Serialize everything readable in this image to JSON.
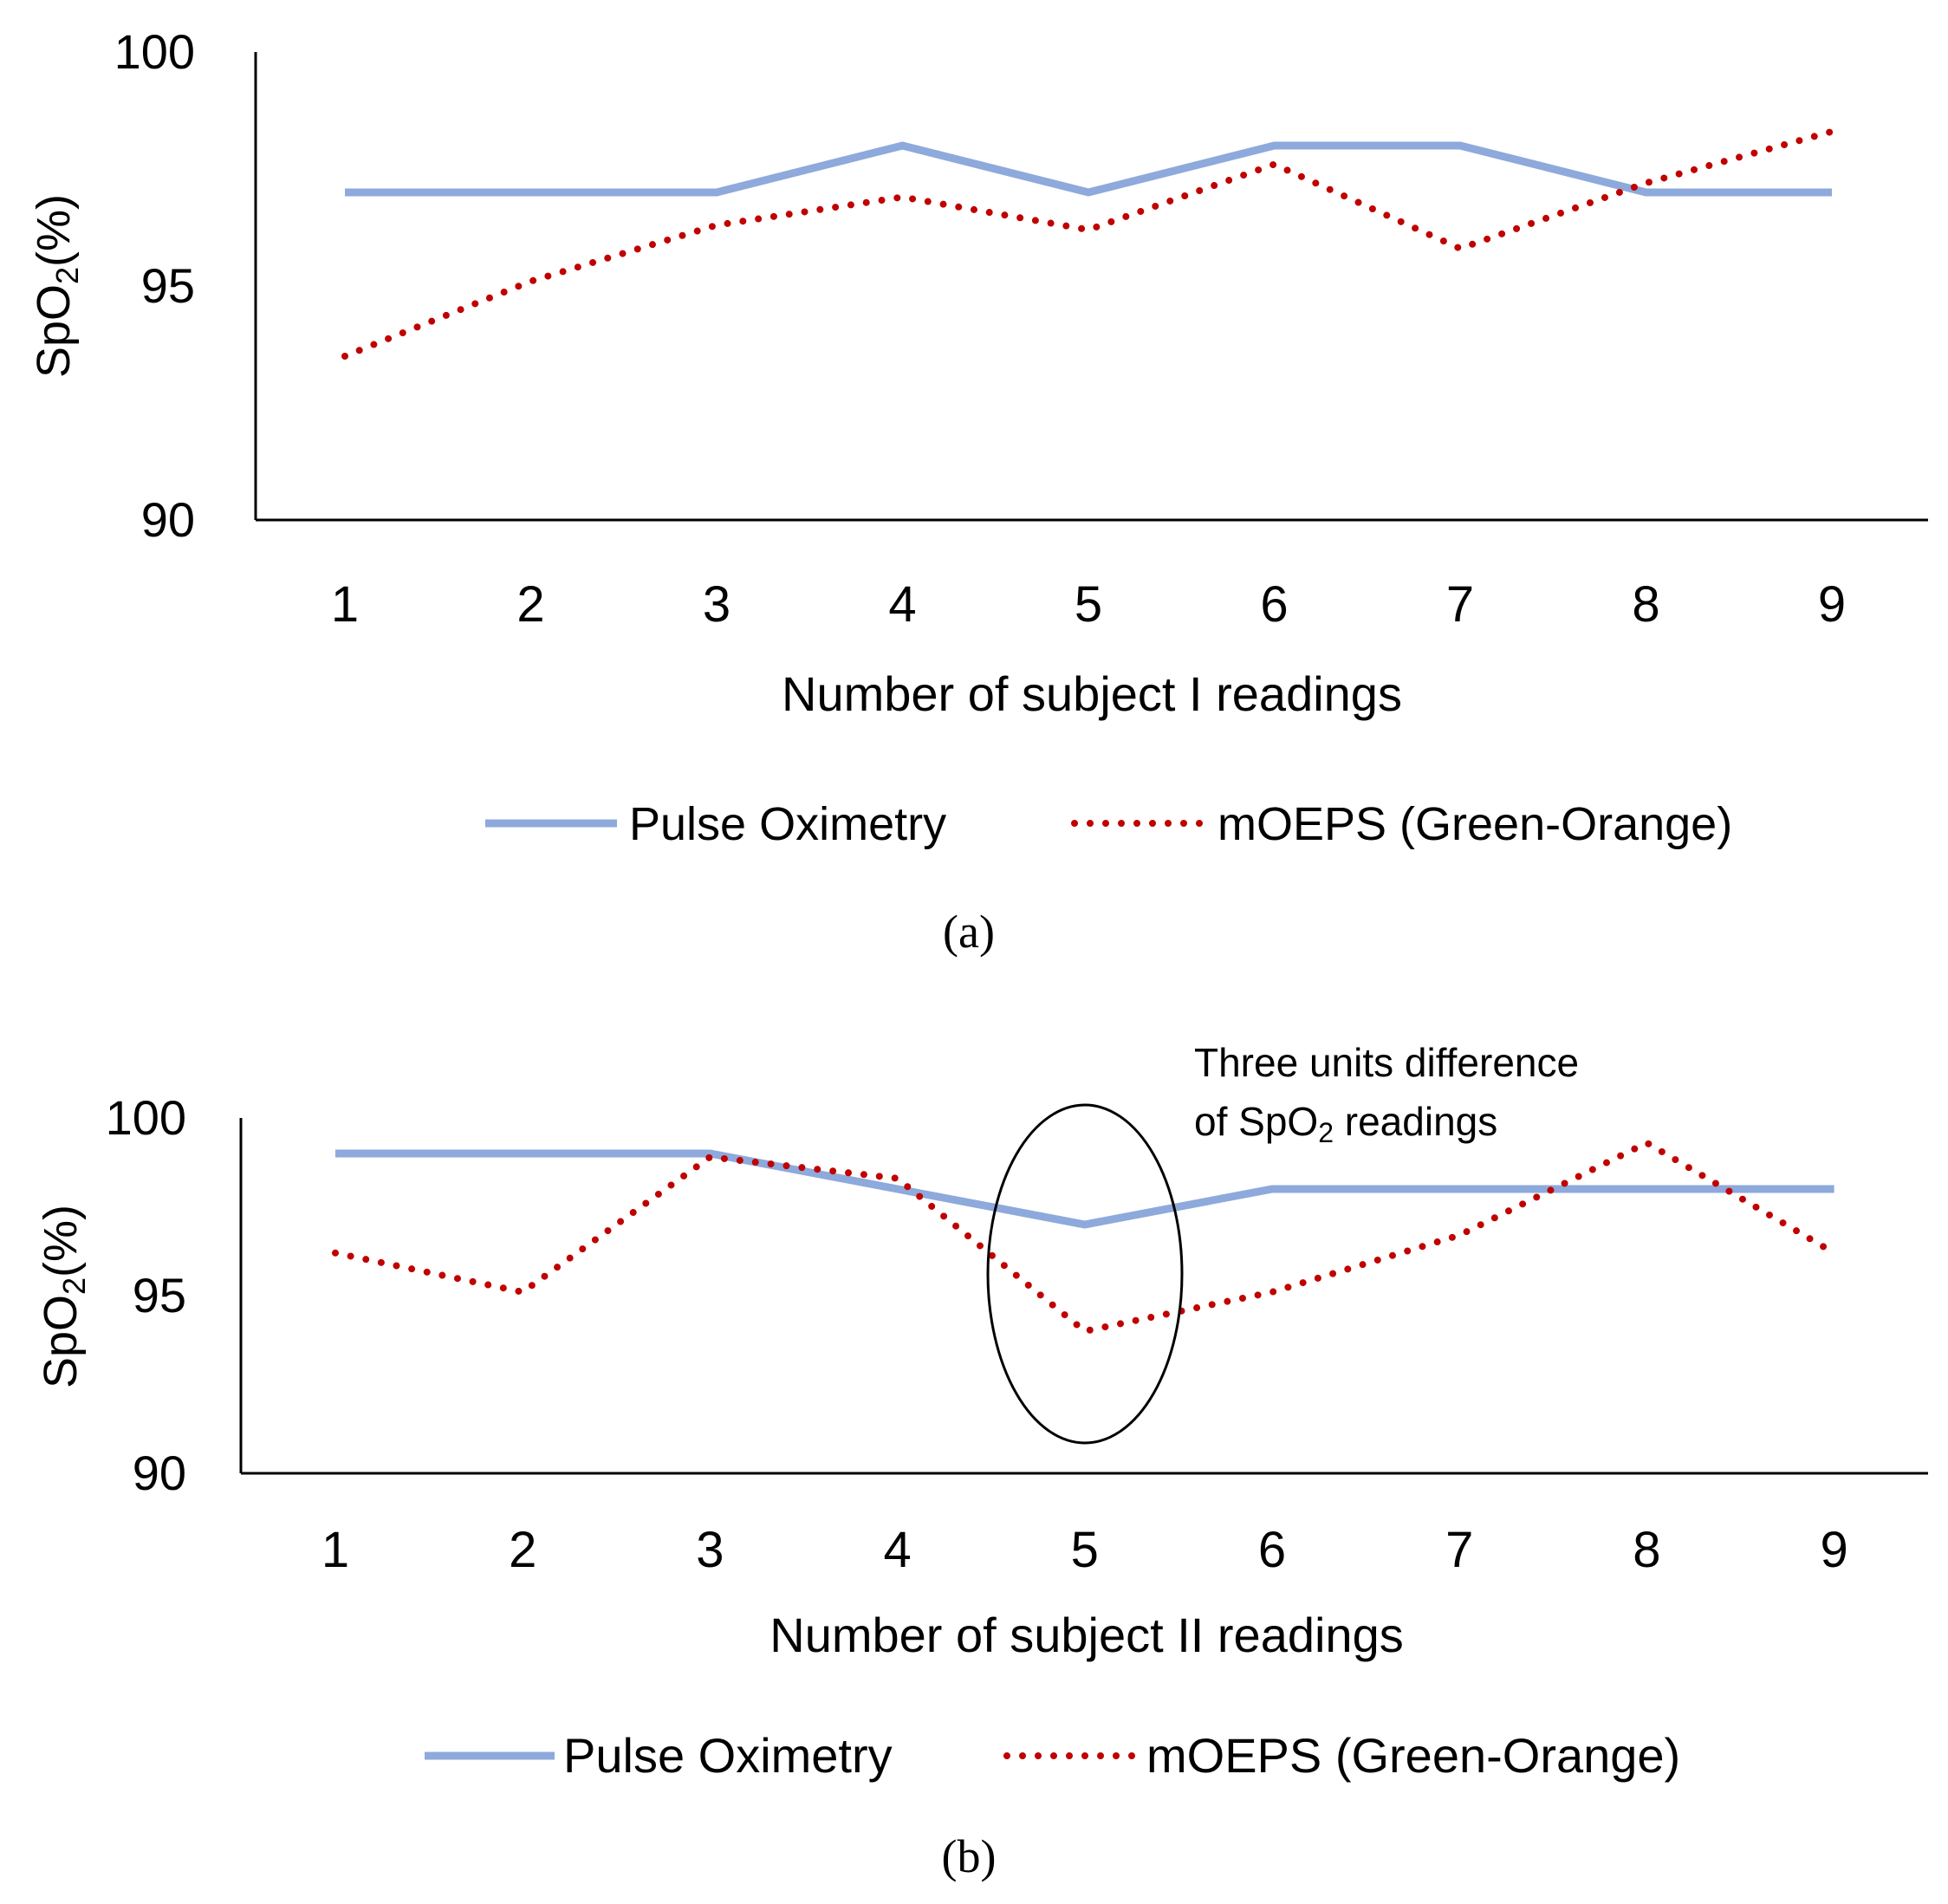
{
  "colors": {
    "pulse": "#8EA9DB",
    "moeps": "#C00000",
    "axis": "#000000"
  },
  "chart_data": [
    {
      "type": "line",
      "panel_label": "(a)",
      "xlabel": "Number of subject  I readings",
      "ylabel": "SpO",
      "ylabel_sub": "2",
      "ylabel_suffix": "(%)",
      "categories": [
        "1",
        "2",
        "3",
        "4",
        "5",
        "6",
        "7",
        "8",
        "9"
      ],
      "ylim": [
        90,
        100
      ],
      "yticks": [
        "90",
        "95",
        "100"
      ],
      "series": [
        {
          "name": "Pulse Oximetry",
          "style": "solid",
          "values": [
            97,
            97,
            97,
            98,
            97,
            98,
            98,
            97,
            97
          ]
        },
        {
          "name": "mOEPS (Green-Orange)",
          "style": "dotted",
          "values": [
            93.5,
            95.1,
            96.3,
            96.9,
            96.2,
            97.6,
            95.8,
            97.2,
            98.3
          ]
        }
      ],
      "legend": "bottom-center",
      "annotation": null
    },
    {
      "type": "line",
      "panel_label": "(b)",
      "xlabel": "Number of subject II readings",
      "ylabel": "SpO",
      "ylabel_sub": "2",
      "ylabel_suffix": "(%)",
      "categories": [
        "1",
        "2",
        "3",
        "4",
        "5",
        "6",
        "7",
        "8",
        "9"
      ],
      "ylim": [
        90,
        100
      ],
      "yticks": [
        "90",
        "95",
        "100"
      ],
      "series": [
        {
          "name": "Pulse Oximetry",
          "style": "solid",
          "values": [
            99,
            99,
            99,
            98,
            97,
            98,
            98,
            98,
            98
          ]
        },
        {
          "name": "mOEPS (Green-Orange)",
          "style": "dotted",
          "values": [
            96.2,
            95.1,
            98.9,
            98.3,
            94.0,
            95.1,
            96.7,
            99.3,
            96.2
          ]
        }
      ],
      "legend": "bottom-center",
      "annotation": {
        "line1": "Three units difference",
        "line2_prefix": "of SpO",
        "line2_sub": "2",
        "line2_suffix": " readings",
        "target_category": "5"
      }
    }
  ]
}
